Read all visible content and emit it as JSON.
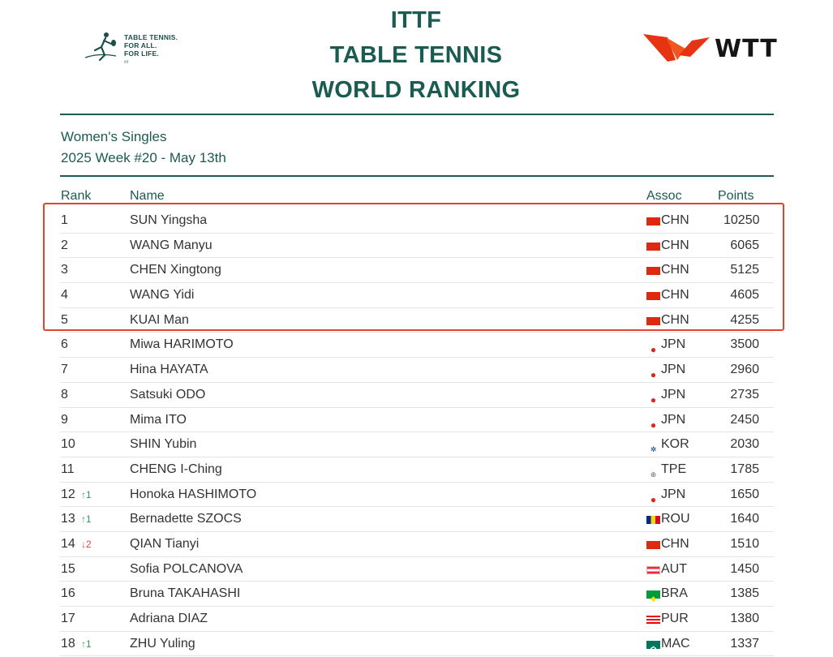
{
  "header": {
    "ittf_logo_lines": [
      "TABLE TENNIS.",
      "FOR ALL.",
      "FOR LIFE."
    ],
    "ittf_logo_brand": "ittf",
    "title_lines": [
      "ITTF",
      "TABLE TENNIS",
      "WORLD RANKING"
    ],
    "wtt_logo_text": "WTT"
  },
  "subtitle": {
    "category": "Women's Singles",
    "week": "2025 Week #20 - May 13th"
  },
  "columns": {
    "rank": "Rank",
    "name": "Name",
    "assoc": "Assoc",
    "points": "Points"
  },
  "rows": [
    {
      "rank": "1",
      "move": "",
      "dir": "",
      "name": "SUN Yingsha",
      "assoc": "CHN",
      "flag": "chn",
      "points": "10250"
    },
    {
      "rank": "2",
      "move": "",
      "dir": "",
      "name": "WANG Manyu",
      "assoc": "CHN",
      "flag": "chn",
      "points": "6065"
    },
    {
      "rank": "3",
      "move": "",
      "dir": "",
      "name": "CHEN Xingtong",
      "assoc": "CHN",
      "flag": "chn",
      "points": "5125"
    },
    {
      "rank": "4",
      "move": "",
      "dir": "",
      "name": "WANG Yidi",
      "assoc": "CHN",
      "flag": "chn",
      "points": "4605"
    },
    {
      "rank": "5",
      "move": "",
      "dir": "",
      "name": "KUAI Man",
      "assoc": "CHN",
      "flag": "chn",
      "points": "4255"
    },
    {
      "rank": "6",
      "move": "",
      "dir": "",
      "name": "Miwa HARIMOTO",
      "assoc": "JPN",
      "flag": "jpn",
      "points": "3500"
    },
    {
      "rank": "7",
      "move": "",
      "dir": "",
      "name": "Hina HAYATA",
      "assoc": "JPN",
      "flag": "jpn",
      "points": "2960"
    },
    {
      "rank": "8",
      "move": "",
      "dir": "",
      "name": "Satsuki ODO",
      "assoc": "JPN",
      "flag": "jpn",
      "points": "2735"
    },
    {
      "rank": "9",
      "move": "",
      "dir": "",
      "name": "Mima ITO",
      "assoc": "JPN",
      "flag": "jpn",
      "points": "2450"
    },
    {
      "rank": "10",
      "move": "",
      "dir": "",
      "name": "SHIN Yubin",
      "assoc": "KOR",
      "flag": "kor",
      "points": "2030"
    },
    {
      "rank": "11",
      "move": "",
      "dir": "",
      "name": "CHENG I-Ching",
      "assoc": "TPE",
      "flag": "tpe",
      "points": "1785"
    },
    {
      "rank": "12",
      "move": "↑1",
      "dir": "up",
      "name": "Honoka HASHIMOTO",
      "assoc": "JPN",
      "flag": "jpn",
      "points": "1650"
    },
    {
      "rank": "13",
      "move": "↑1",
      "dir": "up",
      "name": "Bernadette SZOCS",
      "assoc": "ROU",
      "flag": "rou",
      "points": "1640"
    },
    {
      "rank": "14",
      "move": "↓2",
      "dir": "down",
      "name": "QIAN Tianyi",
      "assoc": "CHN",
      "flag": "chn",
      "points": "1510"
    },
    {
      "rank": "15",
      "move": "",
      "dir": "",
      "name": "Sofia POLCANOVA",
      "assoc": "AUT",
      "flag": "aut",
      "points": "1450"
    },
    {
      "rank": "16",
      "move": "",
      "dir": "",
      "name": "Bruna TAKAHASHI",
      "assoc": "BRA",
      "flag": "bra",
      "points": "1385"
    },
    {
      "rank": "17",
      "move": "",
      "dir": "",
      "name": "Adriana DIAZ",
      "assoc": "PUR",
      "flag": "pur",
      "points": "1380"
    },
    {
      "rank": "18",
      "move": "↑1",
      "dir": "up",
      "name": "ZHU Yuling",
      "assoc": "MAC",
      "flag": "mac",
      "points": "1337"
    }
  ],
  "highlight": {
    "color": "#e0442f",
    "rows_highlighted": 5
  },
  "colors": {
    "brand_teal": "#1a5b52",
    "wtt_red": "#e63312",
    "up": "#2e9b57",
    "down": "#d94b3c"
  }
}
